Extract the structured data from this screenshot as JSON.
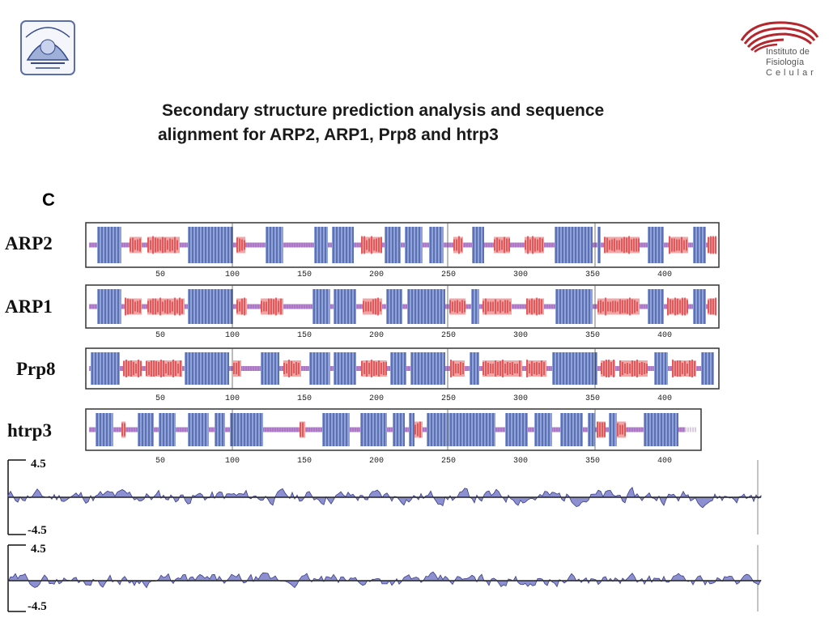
{
  "title": {
    "line1": "Secondary structure prediction analysis and sequence",
    "line2": "alignment for ARP2, ARP1, Prp8 and htrp3"
  },
  "institute_logo": {
    "line1": "Instituto de",
    "line2": "Fisiología",
    "line3": "Celular"
  },
  "panel_label": "C",
  "tracks": [
    {
      "name": "ARP2",
      "ticks": [
        "50",
        "100",
        "150",
        "200",
        "250",
        "300",
        "350",
        "400"
      ]
    },
    {
      "name": "ARP1",
      "ticks": [
        "50",
        "100",
        "150",
        "200",
        "250",
        "300",
        "350",
        "400"
      ]
    },
    {
      "name": "Prp8",
      "ticks": [
        "50",
        "100",
        "150",
        "200",
        "250",
        "300",
        "350",
        "400"
      ]
    },
    {
      "name": "htrp3",
      "ticks": [
        "50",
        "100",
        "150",
        "200",
        "250",
        "300",
        "350",
        "400"
      ]
    }
  ],
  "profiles": [
    {
      "ymax": "4.5",
      "ymin": "-4.5"
    },
    {
      "ymax": "4.5",
      "ymin": "-4.5"
    }
  ],
  "colors": {
    "helix": "#8fa3d8",
    "helix_line": "#2a3f8f",
    "strand": "#e0454a",
    "coil": "#b98ad0",
    "profile_fill": "#8c8fd0",
    "profile_line": "#3a3d8a"
  }
}
